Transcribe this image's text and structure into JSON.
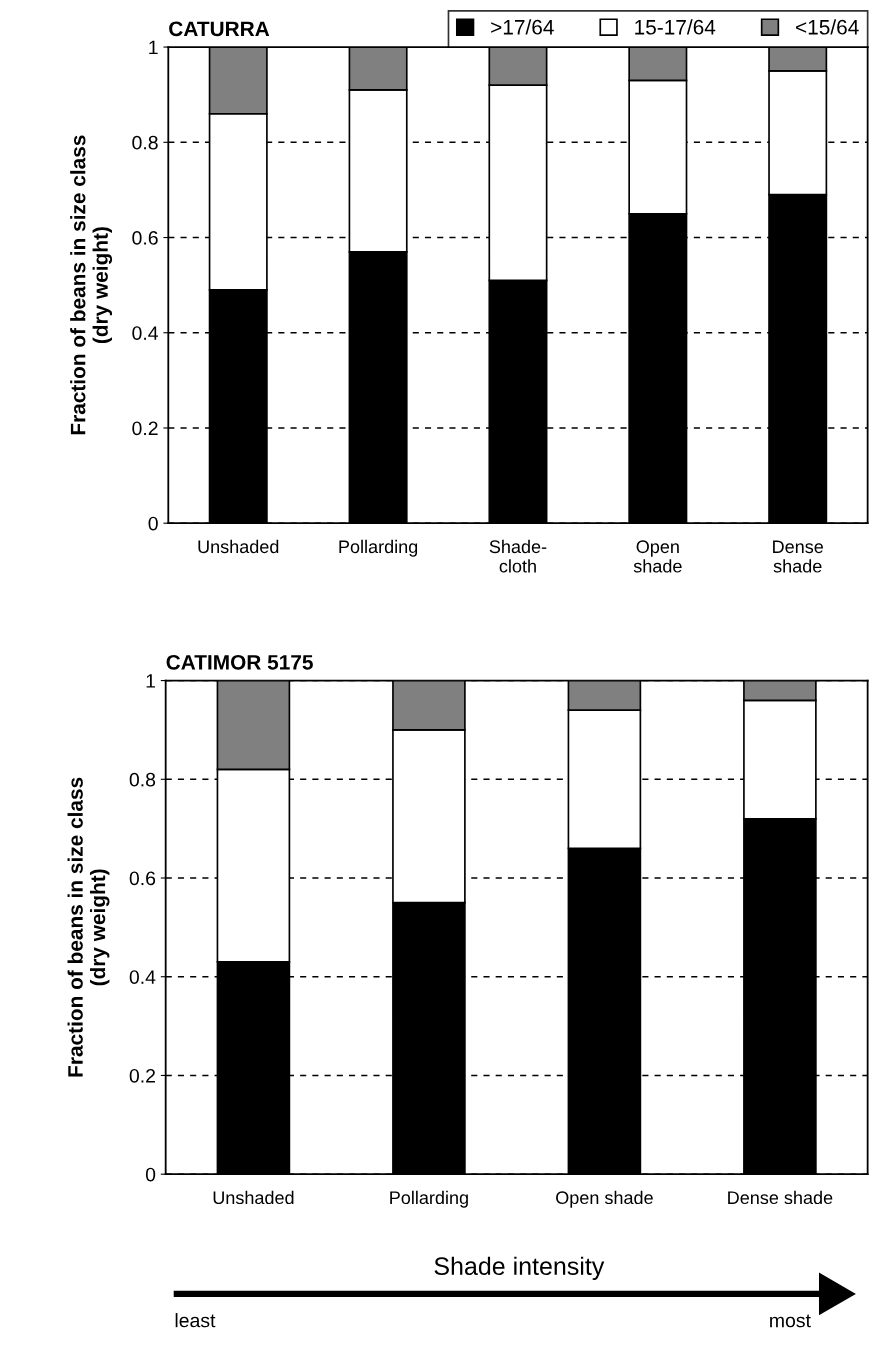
{
  "chart_data": [
    {
      "type": "bar",
      "title": "CATURRA",
      "ylabel": "Fraction of beans in size class\n(dry weight)",
      "stacked": true,
      "categories": [
        "Unshaded",
        "Pollarding",
        "Shade-\ncloth",
        "Open\nshade",
        "Dense\nshade"
      ],
      "series": [
        {
          "name": ">17/64",
          "color": "#000000",
          "values": [
            0.49,
            0.57,
            0.51,
            0.65,
            0.69
          ]
        },
        {
          "name": "15-17/64",
          "color": "#ffffff",
          "values": [
            0.37,
            0.34,
            0.41,
            0.28,
            0.26
          ]
        },
        {
          "name": "<15/64",
          "color": "#808080",
          "values": [
            0.14,
            0.09,
            0.08,
            0.07,
            0.05
          ]
        }
      ],
      "ylim": [
        0,
        1
      ],
      "yticks": [
        0,
        0.2,
        0.4,
        0.6,
        0.8,
        1
      ],
      "grid": "y",
      "legend": "top right"
    },
    {
      "type": "bar",
      "title": "CATIMOR 5175",
      "ylabel": "Fraction of beans in size class\n(dry weight)",
      "xlabel": "Shade intensity",
      "stacked": true,
      "categories": [
        "Unshaded",
        "Pollarding",
        "Open shade",
        "Dense shade"
      ],
      "series": [
        {
          "color": "#000000",
          "values": [
            0.43,
            0.55,
            0.66,
            0.72
          ]
        },
        {
          "color": "#ffffff",
          "values": [
            0.39,
            0.35,
            0.28,
            0.24
          ]
        },
        {
          "color": "#808080",
          "values": [
            0.18,
            0.1,
            0.06,
            0.04
          ]
        }
      ],
      "ylim": [
        0,
        1
      ],
      "yticks": [
        0,
        0.2,
        0.4,
        0.6,
        0.8,
        1
      ],
      "grid": "y",
      "annotations": [
        "least",
        "most"
      ]
    }
  ]
}
